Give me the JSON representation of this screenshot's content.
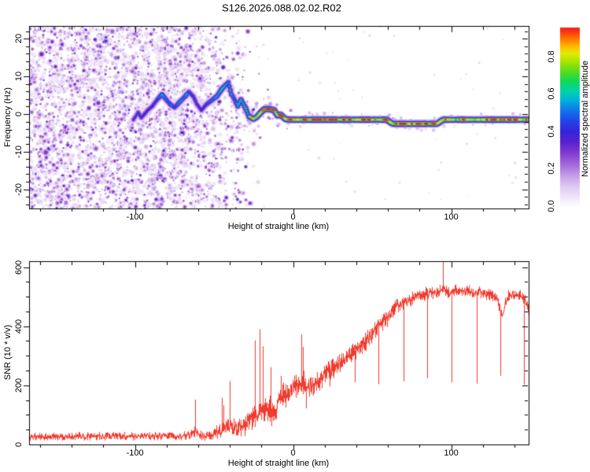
{
  "title": "S126.2026.088.02.02.R02",
  "colors": {
    "background": "#ffffff",
    "axis": "#000000",
    "curve_red": "#f23a2e",
    "colormap": [
      [
        0.0,
        "#ffffff"
      ],
      [
        0.04,
        "#f3eaf9"
      ],
      [
        0.1,
        "#e2cdf3"
      ],
      [
        0.16,
        "#c9a1e8"
      ],
      [
        0.22,
        "#a76cdc"
      ],
      [
        0.28,
        "#8440d2"
      ],
      [
        0.34,
        "#5c22cd"
      ],
      [
        0.4,
        "#3525d8"
      ],
      [
        0.46,
        "#2047e8"
      ],
      [
        0.52,
        "#0f7ce8"
      ],
      [
        0.57,
        "#00b4d8"
      ],
      [
        0.62,
        "#00d4a8"
      ],
      [
        0.67,
        "#10d855"
      ],
      [
        0.72,
        "#55dc20"
      ],
      [
        0.77,
        "#a0e400"
      ],
      [
        0.82,
        "#e8e800"
      ],
      [
        0.86,
        "#ffb400"
      ],
      [
        0.9,
        "#ff7000"
      ],
      [
        0.94,
        "#fa2e14"
      ],
      [
        1.0,
        "#e4004c"
      ]
    ]
  },
  "chart_data": [
    {
      "type": "heatmap",
      "panel": "spectrogram",
      "xlabel": "Height of straight line (km)",
      "ylabel": "Frequency (Hz)",
      "xlim": [
        -167,
        149
      ],
      "ylim": [
        -25.1,
        23.4
      ],
      "x_tick_values": [
        -100,
        0,
        100
      ],
      "x_tick_labels": [
        "-100",
        "0",
        "100"
      ],
      "x_minor_step": 20,
      "y_tick_values": [
        -20,
        -10,
        0,
        10,
        20
      ],
      "y_tick_labels": [
        "-20",
        "-10",
        "0",
        "10",
        "20"
      ],
      "y_minor_step": 2,
      "colorbar": {
        "label": "Normalized spectral amplitude",
        "tick_values": [
          0.0,
          0.2,
          0.4,
          0.6,
          0.8
        ],
        "tick_labels": [
          "0.0",
          "0.2",
          "0.4",
          "0.6",
          "0.8"
        ],
        "vmin": 0,
        "vmax": 0.955
      },
      "noise_field": {
        "density_profile": [
          [
            -167,
            1
          ],
          [
            -80,
            1
          ],
          [
            -60,
            0.8
          ],
          [
            -45,
            0.5
          ],
          [
            -30,
            0.22
          ],
          [
            -20,
            0.06
          ],
          [
            -15,
            0
          ]
        ],
        "amp_range": [
          0.05,
          0.45
        ],
        "blob_attempts": 4600
      },
      "trace_points": [
        [
          -101,
          -1.5,
          0.38
        ],
        [
          -98,
          0.4,
          0.4
        ],
        [
          -96,
          -1.0,
          0.38
        ],
        [
          -92,
          1.0,
          0.42
        ],
        [
          -89,
          2.1,
          0.44
        ],
        [
          -86,
          3.8,
          0.46
        ],
        [
          -83,
          5.2,
          0.55
        ],
        [
          -81,
          4.2,
          0.48
        ],
        [
          -78,
          2.7,
          0.45
        ],
        [
          -75,
          1.7,
          0.46
        ],
        [
          -72,
          3.1,
          0.5
        ],
        [
          -68,
          4.8,
          0.56
        ],
        [
          -66,
          5.9,
          0.52
        ],
        [
          -63,
          4.6,
          0.48
        ],
        [
          -61,
          2.7,
          0.46
        ],
        [
          -58,
          1.0,
          0.44
        ],
        [
          -55,
          2.5,
          0.5
        ],
        [
          -51,
          3.8,
          0.52
        ],
        [
          -48,
          4.8,
          0.56
        ],
        [
          -45,
          6.7,
          0.58
        ],
        [
          -41,
          8.4,
          0.6
        ],
        [
          -39,
          5.2,
          0.57
        ],
        [
          -38,
          4.6,
          0.55
        ],
        [
          -35,
          2.1,
          0.57
        ],
        [
          -33,
          3.8,
          0.62
        ],
        [
          -30,
          1.5,
          0.64
        ],
        [
          -28,
          -0.6,
          0.72
        ],
        [
          -25,
          -1.3,
          0.88
        ],
        [
          -23,
          -0.8,
          0.76
        ],
        [
          -20,
          0.6,
          0.82
        ],
        [
          -18,
          1.3,
          0.92
        ],
        [
          -15,
          1.3,
          0.94
        ],
        [
          -12,
          1.0,
          0.86
        ],
        [
          -10,
          -0.4,
          0.82
        ],
        [
          -8,
          -0.2,
          0.88
        ],
        [
          -5,
          -1.3,
          0.92
        ],
        [
          -3,
          -1.5,
          0.94
        ],
        [
          0,
          -1.5,
          0.95
        ]
      ],
      "band": {
        "x_range": [
          0,
          148.5
        ],
        "hz": -1.5,
        "dip": {
          "x_range": [
            63,
            91
          ],
          "hz": -2.6
        },
        "amp_range": [
          0.78,
          0.97
        ]
      }
    },
    {
      "type": "line",
      "panel": "snr",
      "xlabel": "Height of straight line (km)",
      "ylabel": "SNR (10 * v/v)",
      "xlim": [
        -167,
        149
      ],
      "ylim": [
        0,
        620
      ],
      "x_tick_values": [
        -100,
        0,
        100
      ],
      "x_tick_labels": [
        "-100",
        "0",
        "100"
      ],
      "x_minor_step": 20,
      "y_tick_values": [
        0,
        200,
        400,
        600
      ],
      "y_tick_labels": [
        "0",
        "200",
        "400",
        "600"
      ],
      "y_minor_step": 50,
      "baseline": [
        [
          -167,
          28
        ],
        [
          -150,
          26
        ],
        [
          -135,
          27
        ],
        [
          -120,
          28
        ],
        [
          -110,
          30
        ],
        [
          -100,
          27
        ],
        [
          -90,
          28
        ],
        [
          -80,
          30
        ],
        [
          -72,
          28
        ],
        [
          -66,
          30
        ],
        [
          -62,
          45
        ],
        [
          -58,
          30
        ],
        [
          -53,
          34
        ],
        [
          -48,
          42
        ],
        [
          -44,
          55
        ],
        [
          -40,
          60
        ],
        [
          -36,
          50
        ],
        [
          -32,
          65
        ],
        [
          -28,
          80
        ],
        [
          -24,
          95
        ],
        [
          -21,
          115
        ],
        [
          -18,
          100
        ],
        [
          -15,
          115
        ],
        [
          -12,
          100
        ],
        [
          -9,
          140
        ],
        [
          -6,
          165
        ],
        [
          -3,
          180
        ],
        [
          0,
          195
        ],
        [
          3,
          205
        ],
        [
          6,
          210
        ],
        [
          9,
          190
        ],
        [
          12,
          200
        ],
        [
          15,
          215
        ],
        [
          18,
          228
        ],
        [
          22,
          248
        ],
        [
          26,
          262
        ],
        [
          30,
          278
        ],
        [
          34,
          292
        ],
        [
          38,
          312
        ],
        [
          42,
          332
        ],
        [
          46,
          352
        ],
        [
          50,
          376
        ],
        [
          54,
          400
        ],
        [
          58,
          422
        ],
        [
          62,
          446
        ],
        [
          66,
          466
        ],
        [
          70,
          480
        ],
        [
          74,
          492
        ],
        [
          78,
          502
        ],
        [
          82,
          506
        ],
        [
          86,
          512
        ],
        [
          90,
          516
        ],
        [
          94,
          520
        ],
        [
          98,
          514
        ],
        [
          102,
          520
        ],
        [
          106,
          514
        ],
        [
          110,
          520
        ],
        [
          114,
          510
        ],
        [
          118,
          516
        ],
        [
          122,
          510
        ],
        [
          126,
          506
        ],
        [
          129,
          500
        ],
        [
          131,
          448
        ],
        [
          132,
          428
        ],
        [
          133,
          452
        ],
        [
          135,
          496
        ],
        [
          138,
          510
        ],
        [
          141,
          508
        ],
        [
          144,
          505
        ],
        [
          146,
          495
        ],
        [
          148,
          465
        ],
        [
          149,
          440
        ]
      ],
      "noise_amp": [
        [
          -167,
          16
        ],
        [
          -120,
          16
        ],
        [
          -90,
          17
        ],
        [
          -70,
          18
        ],
        [
          -55,
          22
        ],
        [
          -45,
          30
        ],
        [
          -38,
          35
        ],
        [
          -30,
          45
        ],
        [
          -24,
          55
        ],
        [
          -18,
          60
        ],
        [
          -12,
          58
        ],
        [
          -6,
          52
        ],
        [
          0,
          48
        ],
        [
          6,
          46
        ],
        [
          12,
          44
        ],
        [
          20,
          42
        ],
        [
          30,
          40
        ],
        [
          40,
          40
        ],
        [
          50,
          38
        ],
        [
          60,
          34
        ],
        [
          70,
          30
        ],
        [
          80,
          26
        ],
        [
          90,
          24
        ],
        [
          100,
          24
        ],
        [
          110,
          24
        ],
        [
          120,
          24
        ],
        [
          130,
          26
        ],
        [
          140,
          24
        ],
        [
          146,
          26
        ],
        [
          149,
          30
        ]
      ],
      "spikes": [
        [
          -62,
          152
        ],
        [
          -45,
          158
        ],
        [
          -44,
          132
        ],
        [
          -40,
          215
        ],
        [
          -24,
          352
        ],
        [
          -21,
          390
        ],
        [
          -19,
          332
        ],
        [
          -14,
          262
        ],
        [
          -8,
          232
        ],
        [
          5,
          372
        ],
        [
          6,
          330
        ],
        [
          95,
          618
        ]
      ],
      "dropouts": [
        [
          8,
          122
        ],
        [
          23,
          196
        ],
        [
          39,
          210
        ],
        [
          54,
          204
        ],
        [
          70,
          214
        ],
        [
          85,
          224
        ],
        [
          100,
          210
        ],
        [
          116,
          206
        ],
        [
          131,
          232
        ],
        [
          146,
          202
        ]
      ]
    }
  ]
}
